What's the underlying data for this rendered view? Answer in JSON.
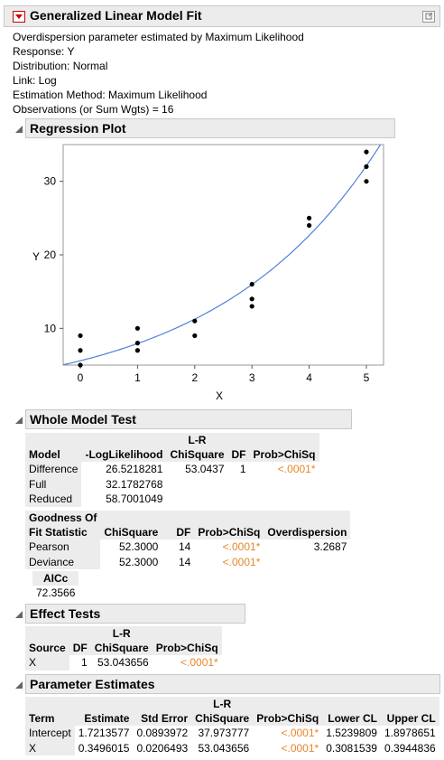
{
  "title": "Generalized Linear Model Fit",
  "info_lines": [
    "Overdispersion parameter estimated by Maximum Likelihood",
    "Response: Y",
    "Distribution: Normal",
    "Link: Log",
    "Estimation Method: Maximum Likelihood",
    "Observations (or Sum Wgts) = 16"
  ],
  "regression": {
    "title": "Regression Plot",
    "chart_data": {
      "type": "scatter",
      "xlabel": "X",
      "ylabel": "Y",
      "xlim": [
        -0.3,
        5.3
      ],
      "ylim": [
        5,
        35
      ],
      "xticks": [
        "0",
        "1",
        "2",
        "3",
        "4",
        "5"
      ],
      "yticks": [
        "10",
        "20",
        "30"
      ],
      "points": [
        [
          0,
          5
        ],
        [
          0,
          7
        ],
        [
          0,
          9
        ],
        [
          1,
          7
        ],
        [
          1,
          8
        ],
        [
          1,
          10
        ],
        [
          2,
          9
        ],
        [
          2,
          11
        ],
        [
          3,
          13
        ],
        [
          3,
          14
        ],
        [
          3,
          16
        ],
        [
          4,
          24
        ],
        [
          4,
          25
        ],
        [
          5,
          30
        ],
        [
          5,
          32
        ],
        [
          5,
          34
        ]
      ],
      "fit": {
        "type": "exp",
        "intercept": 1.7213577,
        "slope": 0.3496015,
        "color": "#4f81d8"
      },
      "point_color": "#000000"
    }
  },
  "whole_model": {
    "title": "Whole Model Test",
    "table1": {
      "headers": [
        "Model",
        "-LogLikelihood",
        "L-R",
        "ChiSquare",
        "DF",
        "Prob>ChiSq"
      ],
      "rows": [
        [
          "Difference",
          "26.5218281",
          "53.0437",
          "1",
          "<.0001*"
        ],
        [
          "Full",
          "32.1782768",
          "",
          "",
          ""
        ],
        [
          "Reduced",
          "58.7001049",
          "",
          "",
          ""
        ]
      ]
    },
    "table2": {
      "headers": [
        "Goodness Of",
        "Fit Statistic",
        "ChiSquare",
        "DF",
        "Prob>ChiSq",
        "Overdispersion"
      ],
      "rows": [
        [
          "Pearson",
          "52.3000",
          "14",
          "<.0001*",
          "3.2687"
        ],
        [
          "Deviance",
          "52.3000",
          "14",
          "<.0001*",
          ""
        ]
      ]
    },
    "aicc_label": "AICc",
    "aicc_value": "72.3566"
  },
  "effect_tests": {
    "title": "Effect Tests",
    "headers": [
      "Source",
      "DF",
      "L-R",
      "ChiSquare",
      "Prob>ChiSq"
    ],
    "rows": [
      [
        "X",
        "1",
        "53.043656",
        "<.0001*"
      ]
    ]
  },
  "param_estimates": {
    "title": "Parameter Estimates",
    "headers": [
      "Term",
      "Estimate",
      "Std Error",
      "L-R",
      "ChiSquare",
      "Prob>ChiSq",
      "Lower CL",
      "Upper CL"
    ],
    "rows": [
      [
        "Intercept",
        "1.7213577",
        "0.0893972",
        "37.973777",
        "<.0001*",
        "1.5239809",
        "1.8978651"
      ],
      [
        "X",
        "0.3496015",
        "0.0206493",
        "53.043656",
        "<.0001*",
        "0.3081539",
        "0.3944836"
      ]
    ]
  },
  "colors": {
    "accent_red": "#c0392b",
    "significant": "#e8862a",
    "header_bg": "#ececec"
  },
  "icons": [
    "red-triangle-menu-icon",
    "disclosure-triangle-icon",
    "pin-icon"
  ]
}
